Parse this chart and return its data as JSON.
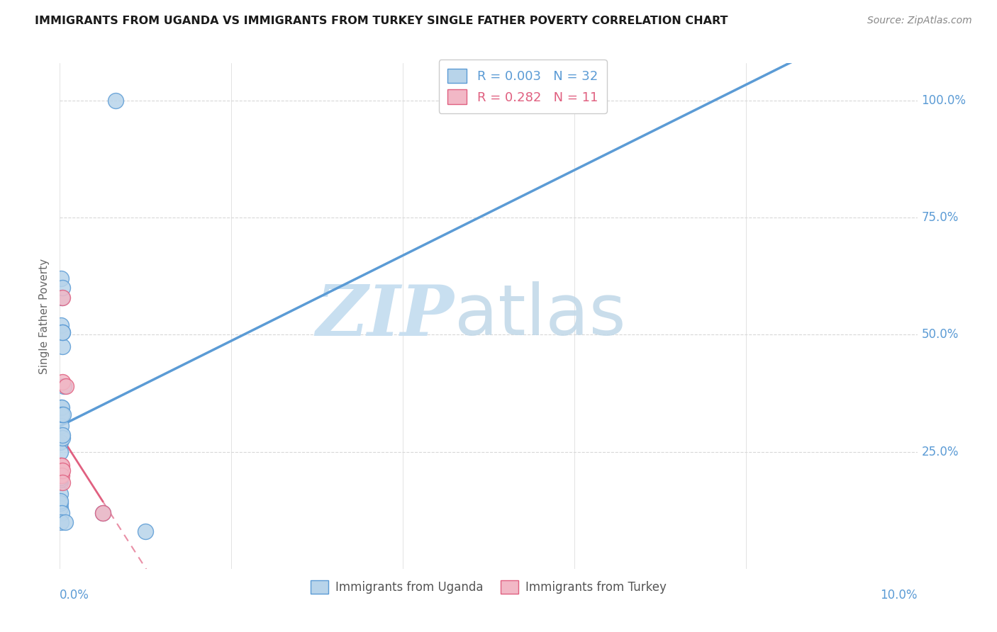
{
  "title": "IMMIGRANTS FROM UGANDA VS IMMIGRANTS FROM TURKEY SINGLE FATHER POVERTY CORRELATION CHART",
  "source": "Source: ZipAtlas.com",
  "ylabel": "Single Father Poverty",
  "legend_label1": "Immigrants from Uganda",
  "legend_label2": "Immigrants from Turkey",
  "R_uganda": 0.003,
  "N_uganda": 32,
  "R_turkey": 0.282,
  "N_turkey": 11,
  "color_uganda": "#b8d4ea",
  "color_turkey": "#f2b8c6",
  "line_color_uganda": "#5b9bd5",
  "line_color_turkey": "#e06080",
  "uganda_x": [
    0.008,
    0.022,
    0.011,
    0.013,
    0.01,
    0.006,
    0.005,
    0.009,
    0.017,
    0.019,
    0.025,
    0.028,
    0.03,
    0.032,
    0.038,
    0.05,
    0.004,
    0.009,
    0.008,
    0.018,
    0.01,
    0.003,
    0.004,
    0.004,
    0.004,
    0.03,
    0.031,
    0.03,
    0.06,
    0.5,
    1.0,
    0.65
  ],
  "uganda_y": [
    0.27,
    0.58,
    0.62,
    0.52,
    0.305,
    0.2,
    0.185,
    0.16,
    0.345,
    0.345,
    0.33,
    0.475,
    0.6,
    0.505,
    0.33,
    0.39,
    0.13,
    0.14,
    0.145,
    0.12,
    0.1,
    0.19,
    0.195,
    0.195,
    0.25,
    0.28,
    0.285,
    0.505,
    0.1,
    0.12,
    0.08,
    1.0
  ],
  "turkey_x": [
    0.004,
    0.009,
    0.01,
    0.019,
    0.02,
    0.028,
    0.03,
    0.03,
    0.03,
    0.07,
    0.5
  ],
  "turkey_y": [
    0.2,
    0.22,
    0.22,
    0.22,
    0.2,
    0.21,
    0.185,
    0.4,
    0.58,
    0.39,
    0.12
  ],
  "xmin": 0.0,
  "xmax": 10.0,
  "ymin": 0.0,
  "ymax": 1.08,
  "ytick_positions": [
    0.25,
    0.5,
    0.75,
    1.0
  ],
  "ytick_labels": [
    "25.0%",
    "50.0%",
    "75.0%",
    "100.0%"
  ],
  "xtick_label_left": "0.0%",
  "xtick_label_right": "10.0%",
  "grid_color": "#d8d8d8",
  "watermark_zip_color": "#c8dff0",
  "watermark_atlas_color": "#c0d8e8"
}
